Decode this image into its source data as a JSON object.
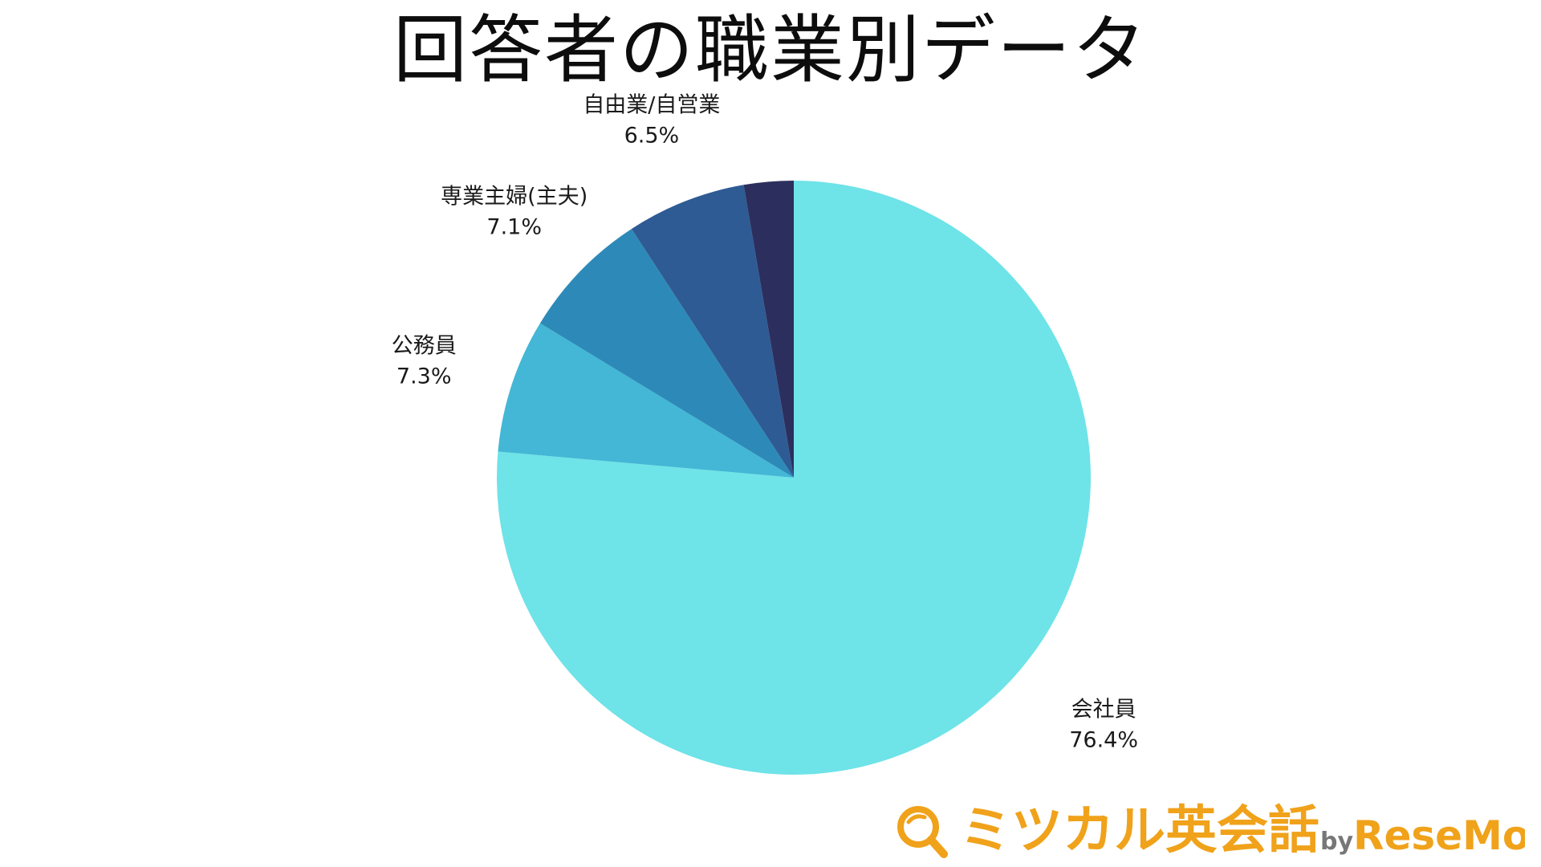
{
  "chart_data": {
    "type": "pie",
    "title": "回答者の職業別データ",
    "start_angle_deg": 0,
    "direction": "clockwise",
    "slices": [
      {
        "label": "会社員",
        "value": 76.4,
        "value_label": "76.4%",
        "color": "#6ee3e8"
      },
      {
        "label": "公務員",
        "value": 7.3,
        "value_label": "7.3%",
        "color": "#43b7d5"
      },
      {
        "label": "専業主婦(主夫)",
        "value": 7.1,
        "value_label": "7.1%",
        "color": "#2d8ab8"
      },
      {
        "label": "自由業/自営業",
        "value": 6.5,
        "value_label": "6.5%",
        "color": "#2e5b93"
      },
      {
        "label": "",
        "value": 2.7,
        "value_label": "",
        "color": "#2c2f5e"
      }
    ]
  },
  "logo": {
    "text": "ミツカル英会話",
    "by": "by",
    "brand": "ReseMom",
    "color": "#f0a21a"
  }
}
